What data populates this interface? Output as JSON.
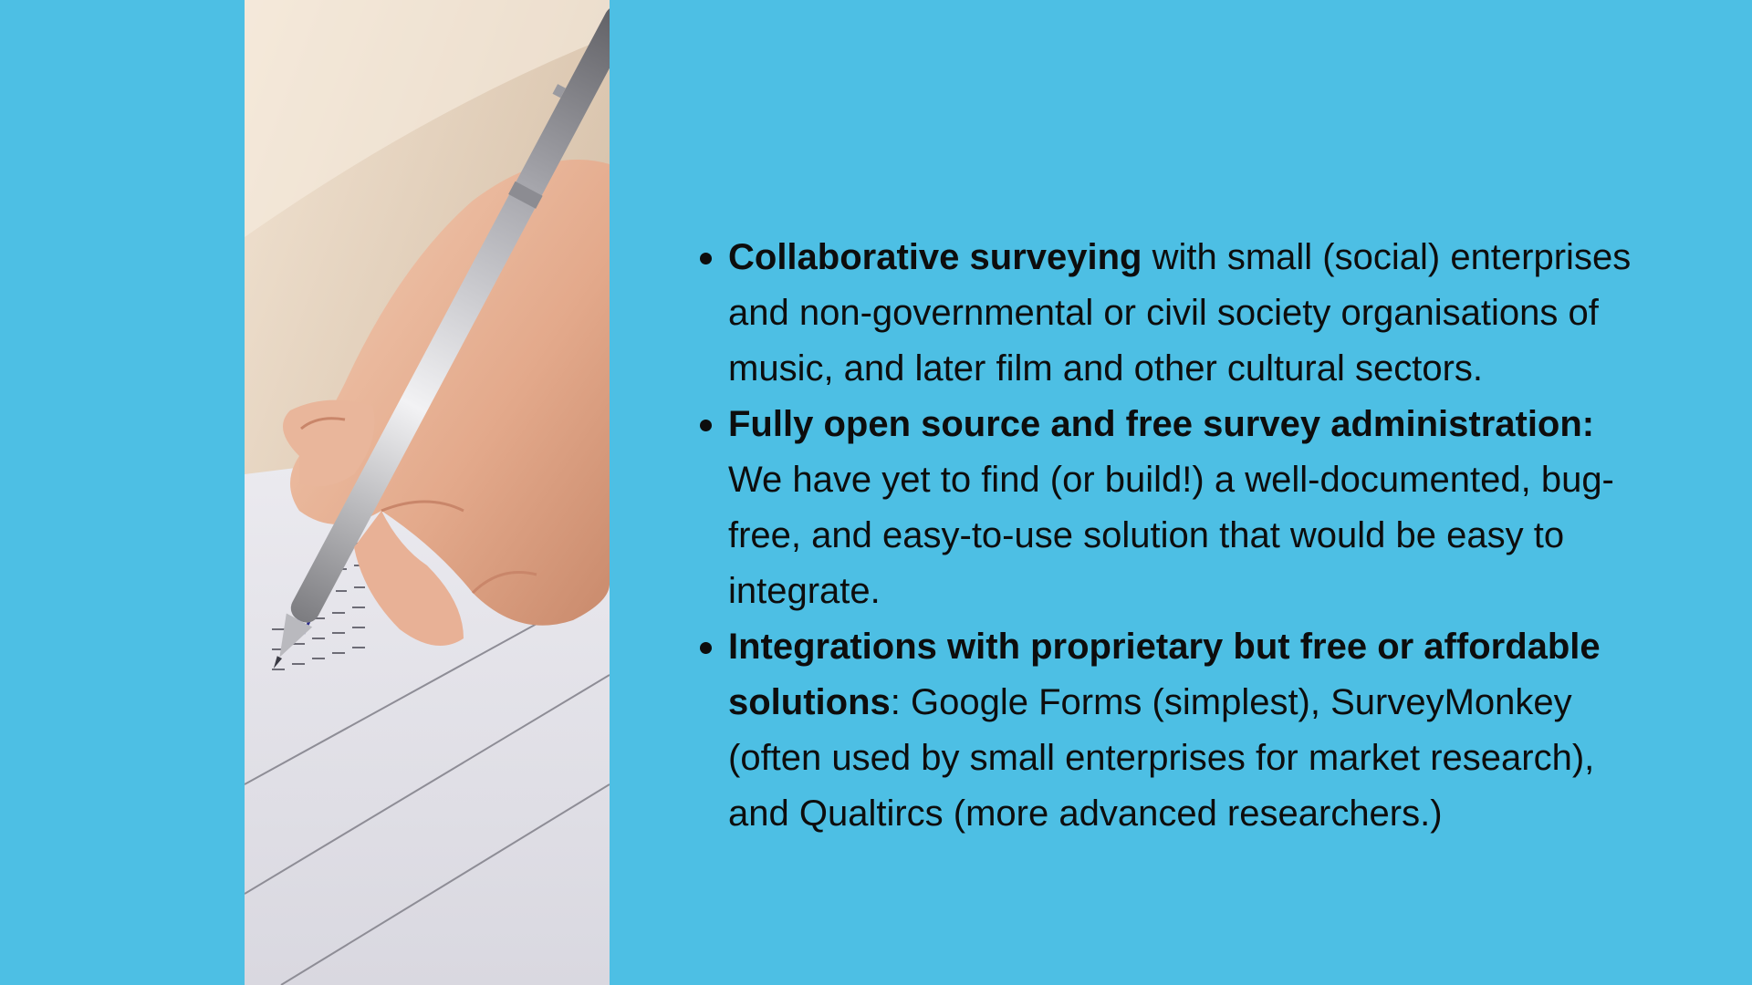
{
  "theme": {
    "background": "#4dbfe4",
    "text": "#0d0d0d"
  },
  "photo": {
    "icon": "hand-writing-pen-on-survey-form"
  },
  "bullets": [
    {
      "bold": "Collaborative surveying",
      "text": " with small (social) enterprises and non-governmental or civil society organisations of music, and later film and other cultural sectors."
    },
    {
      "bold": "Fully open source and free survey administration:",
      "text": " We have yet to find (or build!) a well-documented, bug-free, and easy-to-use solution that would be easy to integrate."
    },
    {
      "bold": "Integrations with proprietary but free or affordable solutions",
      "text": ": Google Forms (simplest), SurveyMonkey (often used by small enterprises for market research), and Qualtircs (more advanced researchers.)"
    }
  ]
}
